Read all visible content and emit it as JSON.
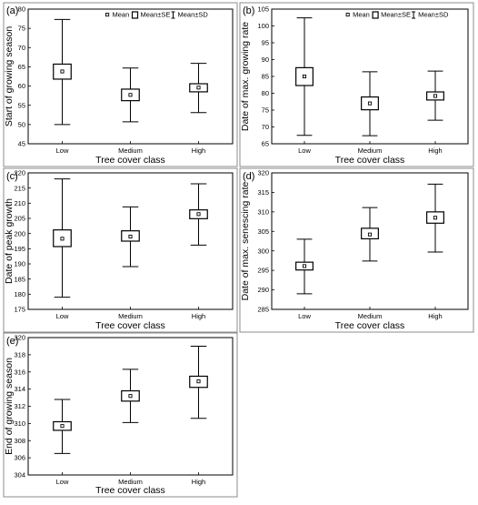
{
  "legend": {
    "mean_label": "Mean",
    "se_label": "Mean±SE",
    "sd_label": "Mean±SD"
  },
  "chart_data": [
    {
      "type": "box",
      "panel_label": "(a)",
      "ylabel": "Start of growing season",
      "xlabel": "Tree cover class",
      "categories": [
        "Low",
        "Medium",
        "High"
      ],
      "ylim": [
        45,
        80
      ],
      "yticks": [
        45,
        50,
        55,
        60,
        65,
        70,
        75,
        80
      ],
      "legend_shown": true,
      "legend_position": "top",
      "grid": true,
      "series": [
        {
          "mean": 63.8,
          "se_low": 61.8,
          "se_high": 65.7,
          "sd_low": 50.0,
          "sd_high": 77.3
        },
        {
          "mean": 57.7,
          "se_low": 56.2,
          "se_high": 59.2,
          "sd_low": 50.7,
          "sd_high": 64.7
        },
        {
          "mean": 59.6,
          "se_low": 58.5,
          "se_high": 60.6,
          "sd_low": 53.1,
          "sd_high": 65.9
        }
      ]
    },
    {
      "type": "box",
      "panel_label": "(b)",
      "ylabel": "Date of max. growing rate",
      "xlabel": "Tree cover class",
      "categories": [
        "Low",
        "Medium",
        "High"
      ],
      "ylim": [
        65,
        105
      ],
      "yticks": [
        65,
        70,
        75,
        80,
        85,
        90,
        95,
        100,
        105
      ],
      "legend_shown": true,
      "legend_position": "top",
      "grid": true,
      "series": [
        {
          "mean": 85.0,
          "se_low": 82.3,
          "se_high": 87.6,
          "sd_low": 67.5,
          "sd_high": 102.4
        },
        {
          "mean": 77.0,
          "se_low": 75.1,
          "se_high": 78.9,
          "sd_low": 67.4,
          "sd_high": 86.4
        },
        {
          "mean": 79.2,
          "se_low": 78.0,
          "se_high": 80.4,
          "sd_low": 72.0,
          "sd_high": 86.6
        }
      ]
    },
    {
      "type": "box",
      "panel_label": "(c)",
      "ylabel": "Date of peak growth",
      "xlabel": "Tree cover class",
      "categories": [
        "Low",
        "Medium",
        "High"
      ],
      "ylim": [
        175,
        220
      ],
      "yticks": [
        175,
        180,
        185,
        190,
        195,
        200,
        205,
        210,
        215,
        220
      ],
      "legend_shown": false,
      "grid": true,
      "series": [
        {
          "mean": 198.3,
          "se_low": 195.7,
          "se_high": 201.2,
          "sd_low": 179.0,
          "sd_high": 218.0
        },
        {
          "mean": 199.0,
          "se_low": 197.5,
          "se_high": 200.9,
          "sd_low": 189.1,
          "sd_high": 208.8
        },
        {
          "mean": 206.4,
          "se_low": 204.9,
          "se_high": 207.8,
          "sd_low": 196.2,
          "sd_high": 216.4
        }
      ]
    },
    {
      "type": "box",
      "panel_label": "(d)",
      "ylabel": "Date of max. senescing rate",
      "xlabel": "Tree cover class",
      "categories": [
        "Low",
        "Medium",
        "High"
      ],
      "ylim": [
        285,
        320
      ],
      "yticks": [
        285,
        290,
        295,
        300,
        305,
        310,
        315,
        320
      ],
      "legend_shown": false,
      "grid": true,
      "series": [
        {
          "mean": 296.1,
          "se_low": 295.1,
          "se_high": 297.1,
          "sd_low": 289.0,
          "sd_high": 303.0
        },
        {
          "mean": 304.2,
          "se_low": 303.1,
          "se_high": 305.8,
          "sd_low": 297.4,
          "sd_high": 311.1
        },
        {
          "mean": 308.5,
          "se_low": 307.1,
          "se_high": 310.0,
          "sd_low": 299.7,
          "sd_high": 317.1
        }
      ]
    },
    {
      "type": "box",
      "panel_label": "(e)",
      "ylabel": "End of growing season",
      "xlabel": "Tree cover class",
      "categories": [
        "Low",
        "Medium",
        "High"
      ],
      "ylim": [
        304,
        320
      ],
      "yticks": [
        304,
        306,
        308,
        310,
        312,
        314,
        316,
        318,
        320
      ],
      "legend_shown": false,
      "grid": true,
      "series": [
        {
          "mean": 309.7,
          "se_low": 309.2,
          "se_high": 310.2,
          "sd_low": 306.5,
          "sd_high": 312.8
        },
        {
          "mean": 313.2,
          "se_low": 312.6,
          "se_high": 313.8,
          "sd_low": 310.1,
          "sd_high": 316.3
        },
        {
          "mean": 314.9,
          "se_low": 314.2,
          "se_high": 315.5,
          "sd_low": 310.6,
          "sd_high": 319.0
        }
      ]
    }
  ]
}
